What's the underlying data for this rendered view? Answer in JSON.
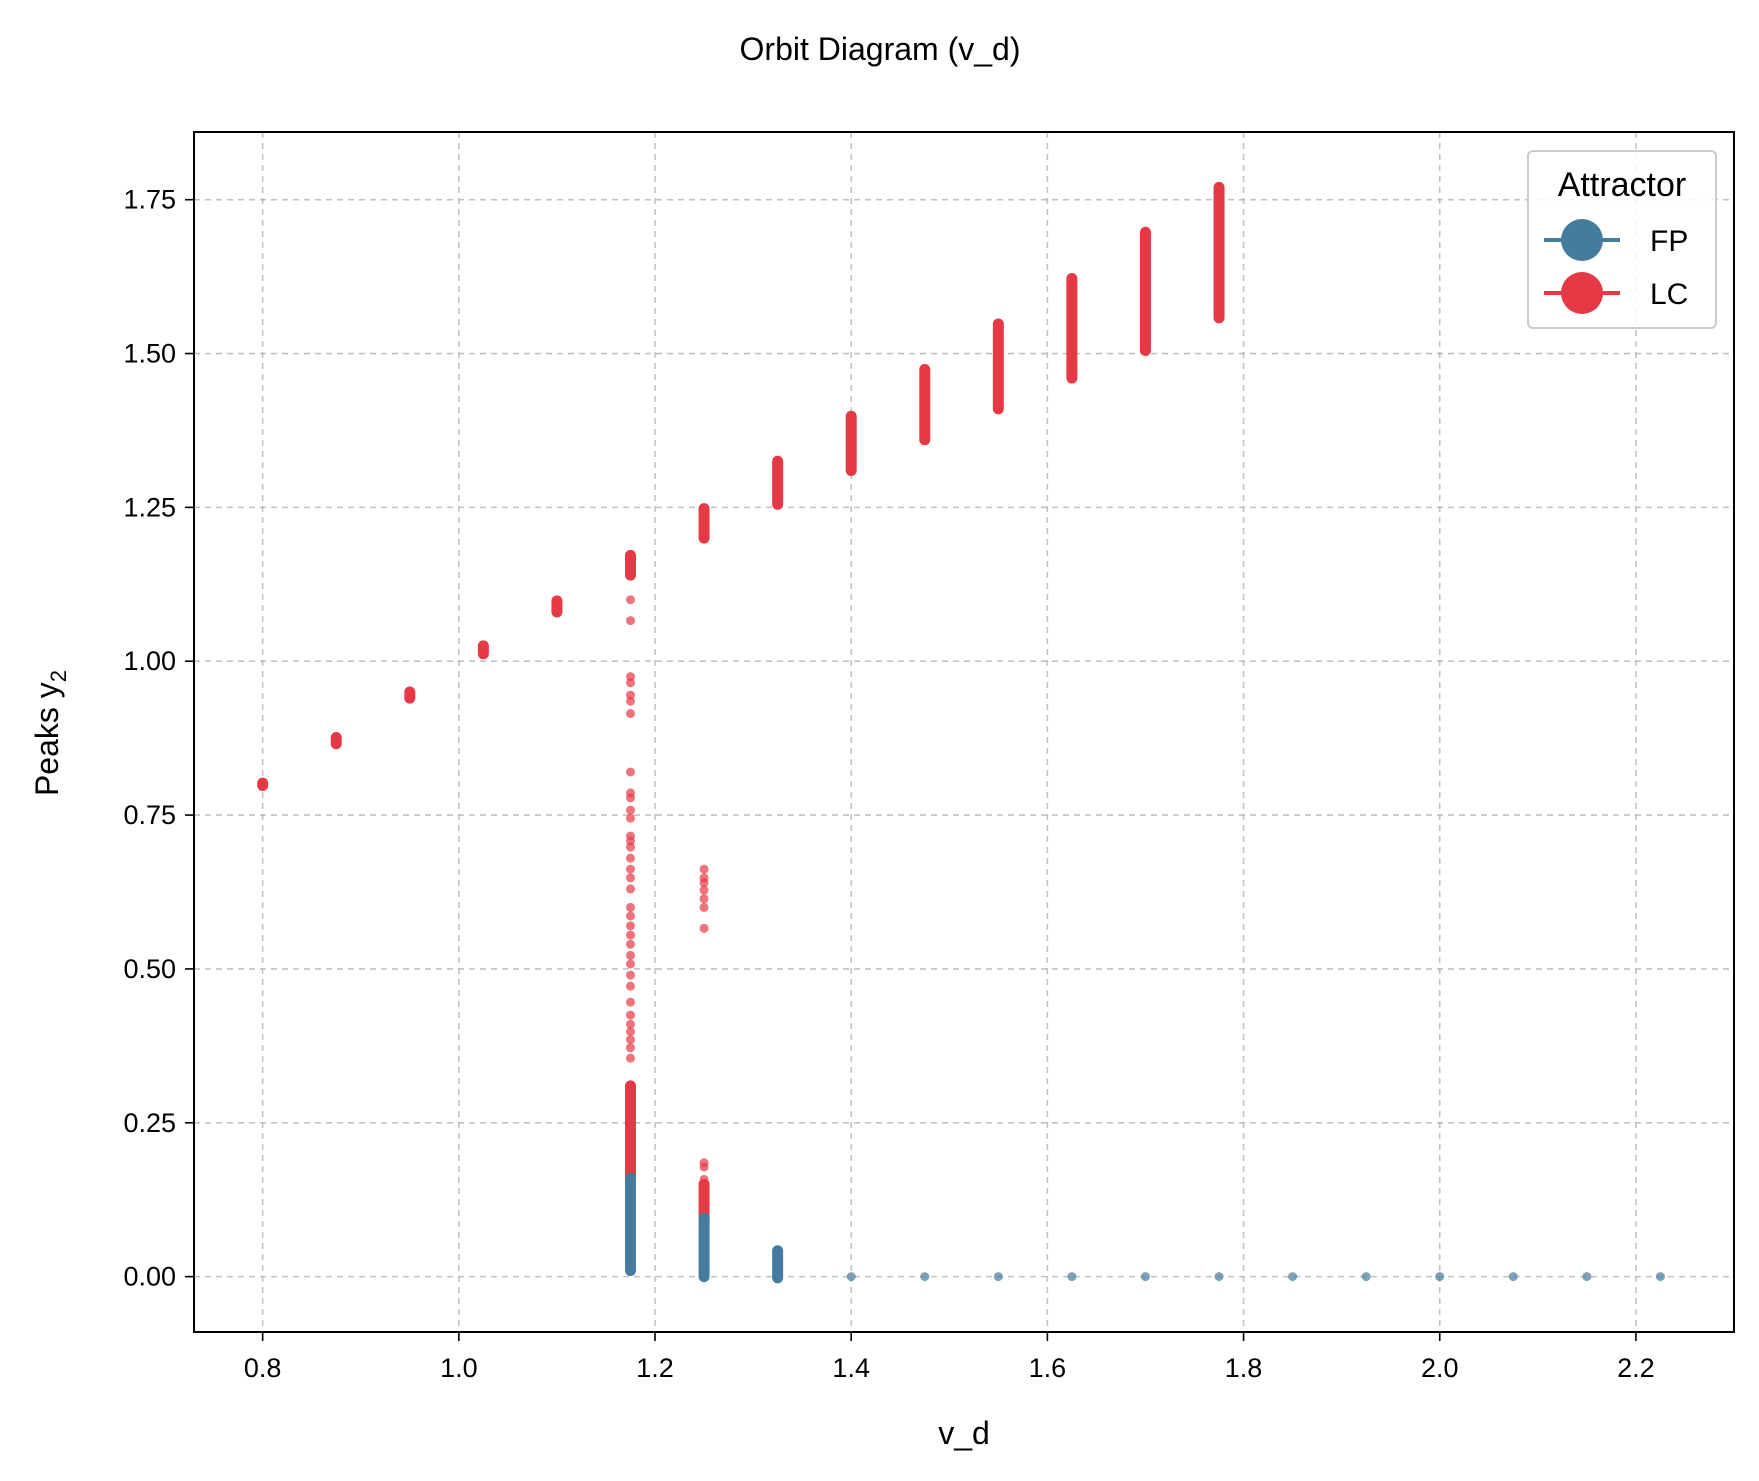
{
  "chart_data": {
    "type": "scatter",
    "title": "Orbit Diagram (v_d)",
    "xlabel": "v_d",
    "ylabel": "Peaks y",
    "ylabel_subscript": "2",
    "xlim": [
      0.73,
      2.3
    ],
    "ylim": [
      -0.09,
      1.86
    ],
    "xticks": [
      0.8,
      1.0,
      1.2,
      1.4,
      1.6,
      1.8,
      2.0,
      2.2
    ],
    "xtick_labels": [
      "0.8",
      "1.0",
      "1.2",
      "1.4",
      "1.6",
      "1.8",
      "2.0",
      "2.2"
    ],
    "yticks": [
      0.0,
      0.25,
      0.5,
      0.75,
      1.0,
      1.25,
      1.5,
      1.75
    ],
    "ytick_labels": [
      "0.00",
      "0.25",
      "0.50",
      "0.75",
      "1.00",
      "1.25",
      "1.50",
      "1.75"
    ],
    "grid": true,
    "legend": {
      "title": "Attractor",
      "position": "top-right",
      "entries": [
        {
          "label": "FP",
          "color": "#457b9d"
        },
        {
          "label": "LC",
          "color": "#e63946"
        }
      ]
    },
    "series": [
      {
        "name": "LC",
        "color": "#e63946",
        "ranges": [
          {
            "x": 0.8,
            "ymin": 0.798,
            "ymax": 0.802
          },
          {
            "x": 0.875,
            "ymin": 0.866,
            "ymax": 0.876
          },
          {
            "x": 0.95,
            "ymin": 0.94,
            "ymax": 0.95
          },
          {
            "x": 1.025,
            "ymin": 1.012,
            "ymax": 1.025
          },
          {
            "x": 1.1,
            "ymin": 1.08,
            "ymax": 1.098
          },
          {
            "x": 1.175,
            "ymin": 1.14,
            "ymax": 1.172
          },
          {
            "x": 1.175,
            "ymin": 0.16,
            "ymax": 0.31
          },
          {
            "x": 1.25,
            "ymin": 1.2,
            "ymax": 1.248
          },
          {
            "x": 1.25,
            "ymin": 0.09,
            "ymax": 0.15
          },
          {
            "x": 1.325,
            "ymin": 1.255,
            "ymax": 1.325
          },
          {
            "x": 1.4,
            "ymin": 1.31,
            "ymax": 1.398
          },
          {
            "x": 1.475,
            "ymin": 1.36,
            "ymax": 1.474
          },
          {
            "x": 1.55,
            "ymin": 1.41,
            "ymax": 1.548
          },
          {
            "x": 1.625,
            "ymin": 1.46,
            "ymax": 1.622
          },
          {
            "x": 1.7,
            "ymin": 1.505,
            "ymax": 1.697
          },
          {
            "x": 1.775,
            "ymin": 1.558,
            "ymax": 1.77
          }
        ],
        "points": [
          {
            "x": 1.175,
            "y": 1.1
          },
          {
            "x": 1.175,
            "y": 1.066
          },
          {
            "x": 1.175,
            "y": 0.975
          },
          {
            "x": 1.175,
            "y": 0.965
          },
          {
            "x": 1.175,
            "y": 0.945
          },
          {
            "x": 1.175,
            "y": 0.935
          },
          {
            "x": 1.175,
            "y": 0.915
          },
          {
            "x": 1.175,
            "y": 0.82
          },
          {
            "x": 1.175,
            "y": 0.786
          },
          {
            "x": 1.175,
            "y": 0.778
          },
          {
            "x": 1.175,
            "y": 0.758
          },
          {
            "x": 1.175,
            "y": 0.745
          },
          {
            "x": 1.175,
            "y": 0.716
          },
          {
            "x": 1.175,
            "y": 0.708
          },
          {
            "x": 1.175,
            "y": 0.698
          },
          {
            "x": 1.175,
            "y": 0.68
          },
          {
            "x": 1.175,
            "y": 0.662
          },
          {
            "x": 1.175,
            "y": 0.648
          },
          {
            "x": 1.175,
            "y": 0.63
          },
          {
            "x": 1.175,
            "y": 0.6
          },
          {
            "x": 1.175,
            "y": 0.586
          },
          {
            "x": 1.175,
            "y": 0.57
          },
          {
            "x": 1.175,
            "y": 0.555
          },
          {
            "x": 1.175,
            "y": 0.54
          },
          {
            "x": 1.175,
            "y": 0.522
          },
          {
            "x": 1.175,
            "y": 0.508
          },
          {
            "x": 1.175,
            "y": 0.49
          },
          {
            "x": 1.175,
            "y": 0.472
          },
          {
            "x": 1.175,
            "y": 0.446
          },
          {
            "x": 1.175,
            "y": 0.425
          },
          {
            "x": 1.175,
            "y": 0.41
          },
          {
            "x": 1.175,
            "y": 0.398
          },
          {
            "x": 1.175,
            "y": 0.385
          },
          {
            "x": 1.175,
            "y": 0.372
          },
          {
            "x": 1.175,
            "y": 0.355
          },
          {
            "x": 1.25,
            "y": 0.662
          },
          {
            "x": 1.25,
            "y": 0.648
          },
          {
            "x": 1.25,
            "y": 0.64
          },
          {
            "x": 1.25,
            "y": 0.628
          },
          {
            "x": 1.25,
            "y": 0.614
          },
          {
            "x": 1.25,
            "y": 0.6
          },
          {
            "x": 1.25,
            "y": 0.566
          },
          {
            "x": 1.25,
            "y": 0.185
          },
          {
            "x": 1.25,
            "y": 0.178
          },
          {
            "x": 1.25,
            "y": 0.158
          }
        ]
      },
      {
        "name": "FP",
        "color": "#457b9d",
        "ranges": [
          {
            "x": 1.175,
            "ymin": 0.01,
            "ymax": 0.16
          },
          {
            "x": 1.25,
            "ymin": 0.0,
            "ymax": 0.095
          },
          {
            "x": 1.325,
            "ymin": -0.002,
            "ymax": 0.042
          }
        ],
        "points": [
          {
            "x": 1.4,
            "y": 0.0
          },
          {
            "x": 1.475,
            "y": 0.0
          },
          {
            "x": 1.55,
            "y": 0.0
          },
          {
            "x": 1.625,
            "y": 0.0
          },
          {
            "x": 1.7,
            "y": 0.0
          },
          {
            "x": 1.775,
            "y": 0.0
          },
          {
            "x": 1.85,
            "y": 0.0
          },
          {
            "x": 1.925,
            "y": 0.0
          },
          {
            "x": 2.0,
            "y": 0.0
          },
          {
            "x": 2.075,
            "y": 0.0
          },
          {
            "x": 2.15,
            "y": 0.0
          },
          {
            "x": 2.225,
            "y": 0.0
          }
        ]
      }
    ]
  }
}
